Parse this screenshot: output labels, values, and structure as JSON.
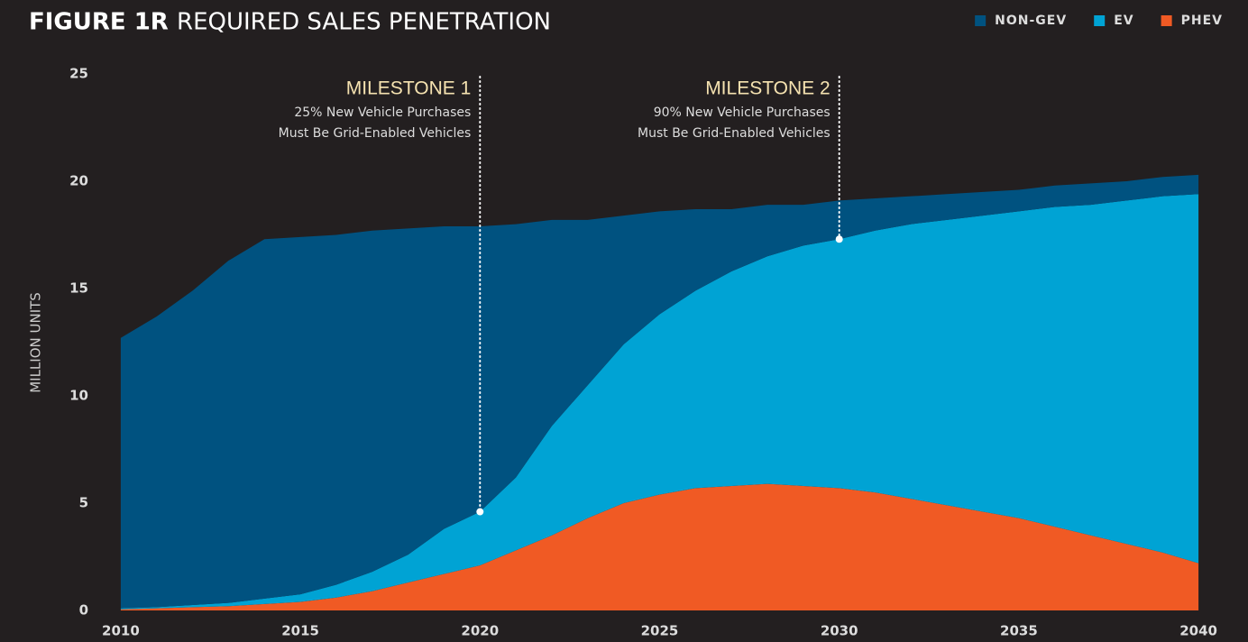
{
  "chart_data": {
    "type": "stacked_area",
    "figure_label": "FIGURE 1R",
    "title": "REQUIRED SALES PENETRATION",
    "y_label": "MILLION UNITS",
    "x": [
      2010,
      2011,
      2012,
      2013,
      2014,
      2015,
      2016,
      2017,
      2018,
      2019,
      2020,
      2021,
      2022,
      2023,
      2024,
      2025,
      2026,
      2027,
      2028,
      2029,
      2030,
      2031,
      2032,
      2033,
      2034,
      2035,
      2036,
      2037,
      2038,
      2039,
      2040
    ],
    "xlim": [
      2009.4,
      2040.6
    ],
    "xticks": [
      2010,
      2015,
      2020,
      2025,
      2030,
      2035,
      2040
    ],
    "ylim": [
      0,
      25
    ],
    "yticks": [
      0,
      5,
      10,
      15,
      20,
      25
    ],
    "legend": "top-right",
    "series": [
      {
        "name": "NON-GEV",
        "color": "#005280",
        "values": [
          12.6,
          13.55,
          14.65,
          15.95,
          16.75,
          16.65,
          16.3,
          15.9,
          15.2,
          14.1,
          13.3,
          11.8,
          9.6,
          7.7,
          6.0,
          4.8,
          3.8,
          2.9,
          2.4,
          1.9,
          1.8,
          1.5,
          1.3,
          1.2,
          1.1,
          1.0,
          1.0,
          1.0,
          0.9,
          0.9,
          0.9
        ]
      },
      {
        "name": "EV",
        "color": "#00a3d4",
        "values": [
          0.05,
          0.05,
          0.1,
          0.15,
          0.25,
          0.35,
          0.6,
          0.9,
          1.3,
          2.1,
          2.5,
          3.4,
          5.1,
          6.2,
          7.4,
          8.4,
          9.2,
          10.0,
          10.6,
          11.2,
          11.6,
          12.2,
          12.8,
          13.3,
          13.8,
          14.3,
          14.9,
          15.4,
          16.0,
          16.6,
          17.2
        ]
      },
      {
        "name": "PHEV",
        "color": "#f05a24",
        "values": [
          0.05,
          0.1,
          0.15,
          0.2,
          0.3,
          0.4,
          0.6,
          0.9,
          1.3,
          1.7,
          2.1,
          2.8,
          3.5,
          4.3,
          5.0,
          5.4,
          5.7,
          5.8,
          5.9,
          5.8,
          5.7,
          5.5,
          5.2,
          4.9,
          4.6,
          4.3,
          3.9,
          3.5,
          3.1,
          2.7,
          2.2
        ]
      }
    ],
    "annotations": [
      {
        "x": 2020,
        "heading": "MILESTONE 1",
        "lines": [
          "25% New Vehicle Purchases",
          "Must Be Grid-Enabled Vehicles"
        ]
      },
      {
        "x": 2030,
        "heading": "MILESTONE 2",
        "lines": [
          "90% New Vehicle Purchases",
          "Must Be Grid-Enabled Vehicles"
        ]
      }
    ]
  }
}
